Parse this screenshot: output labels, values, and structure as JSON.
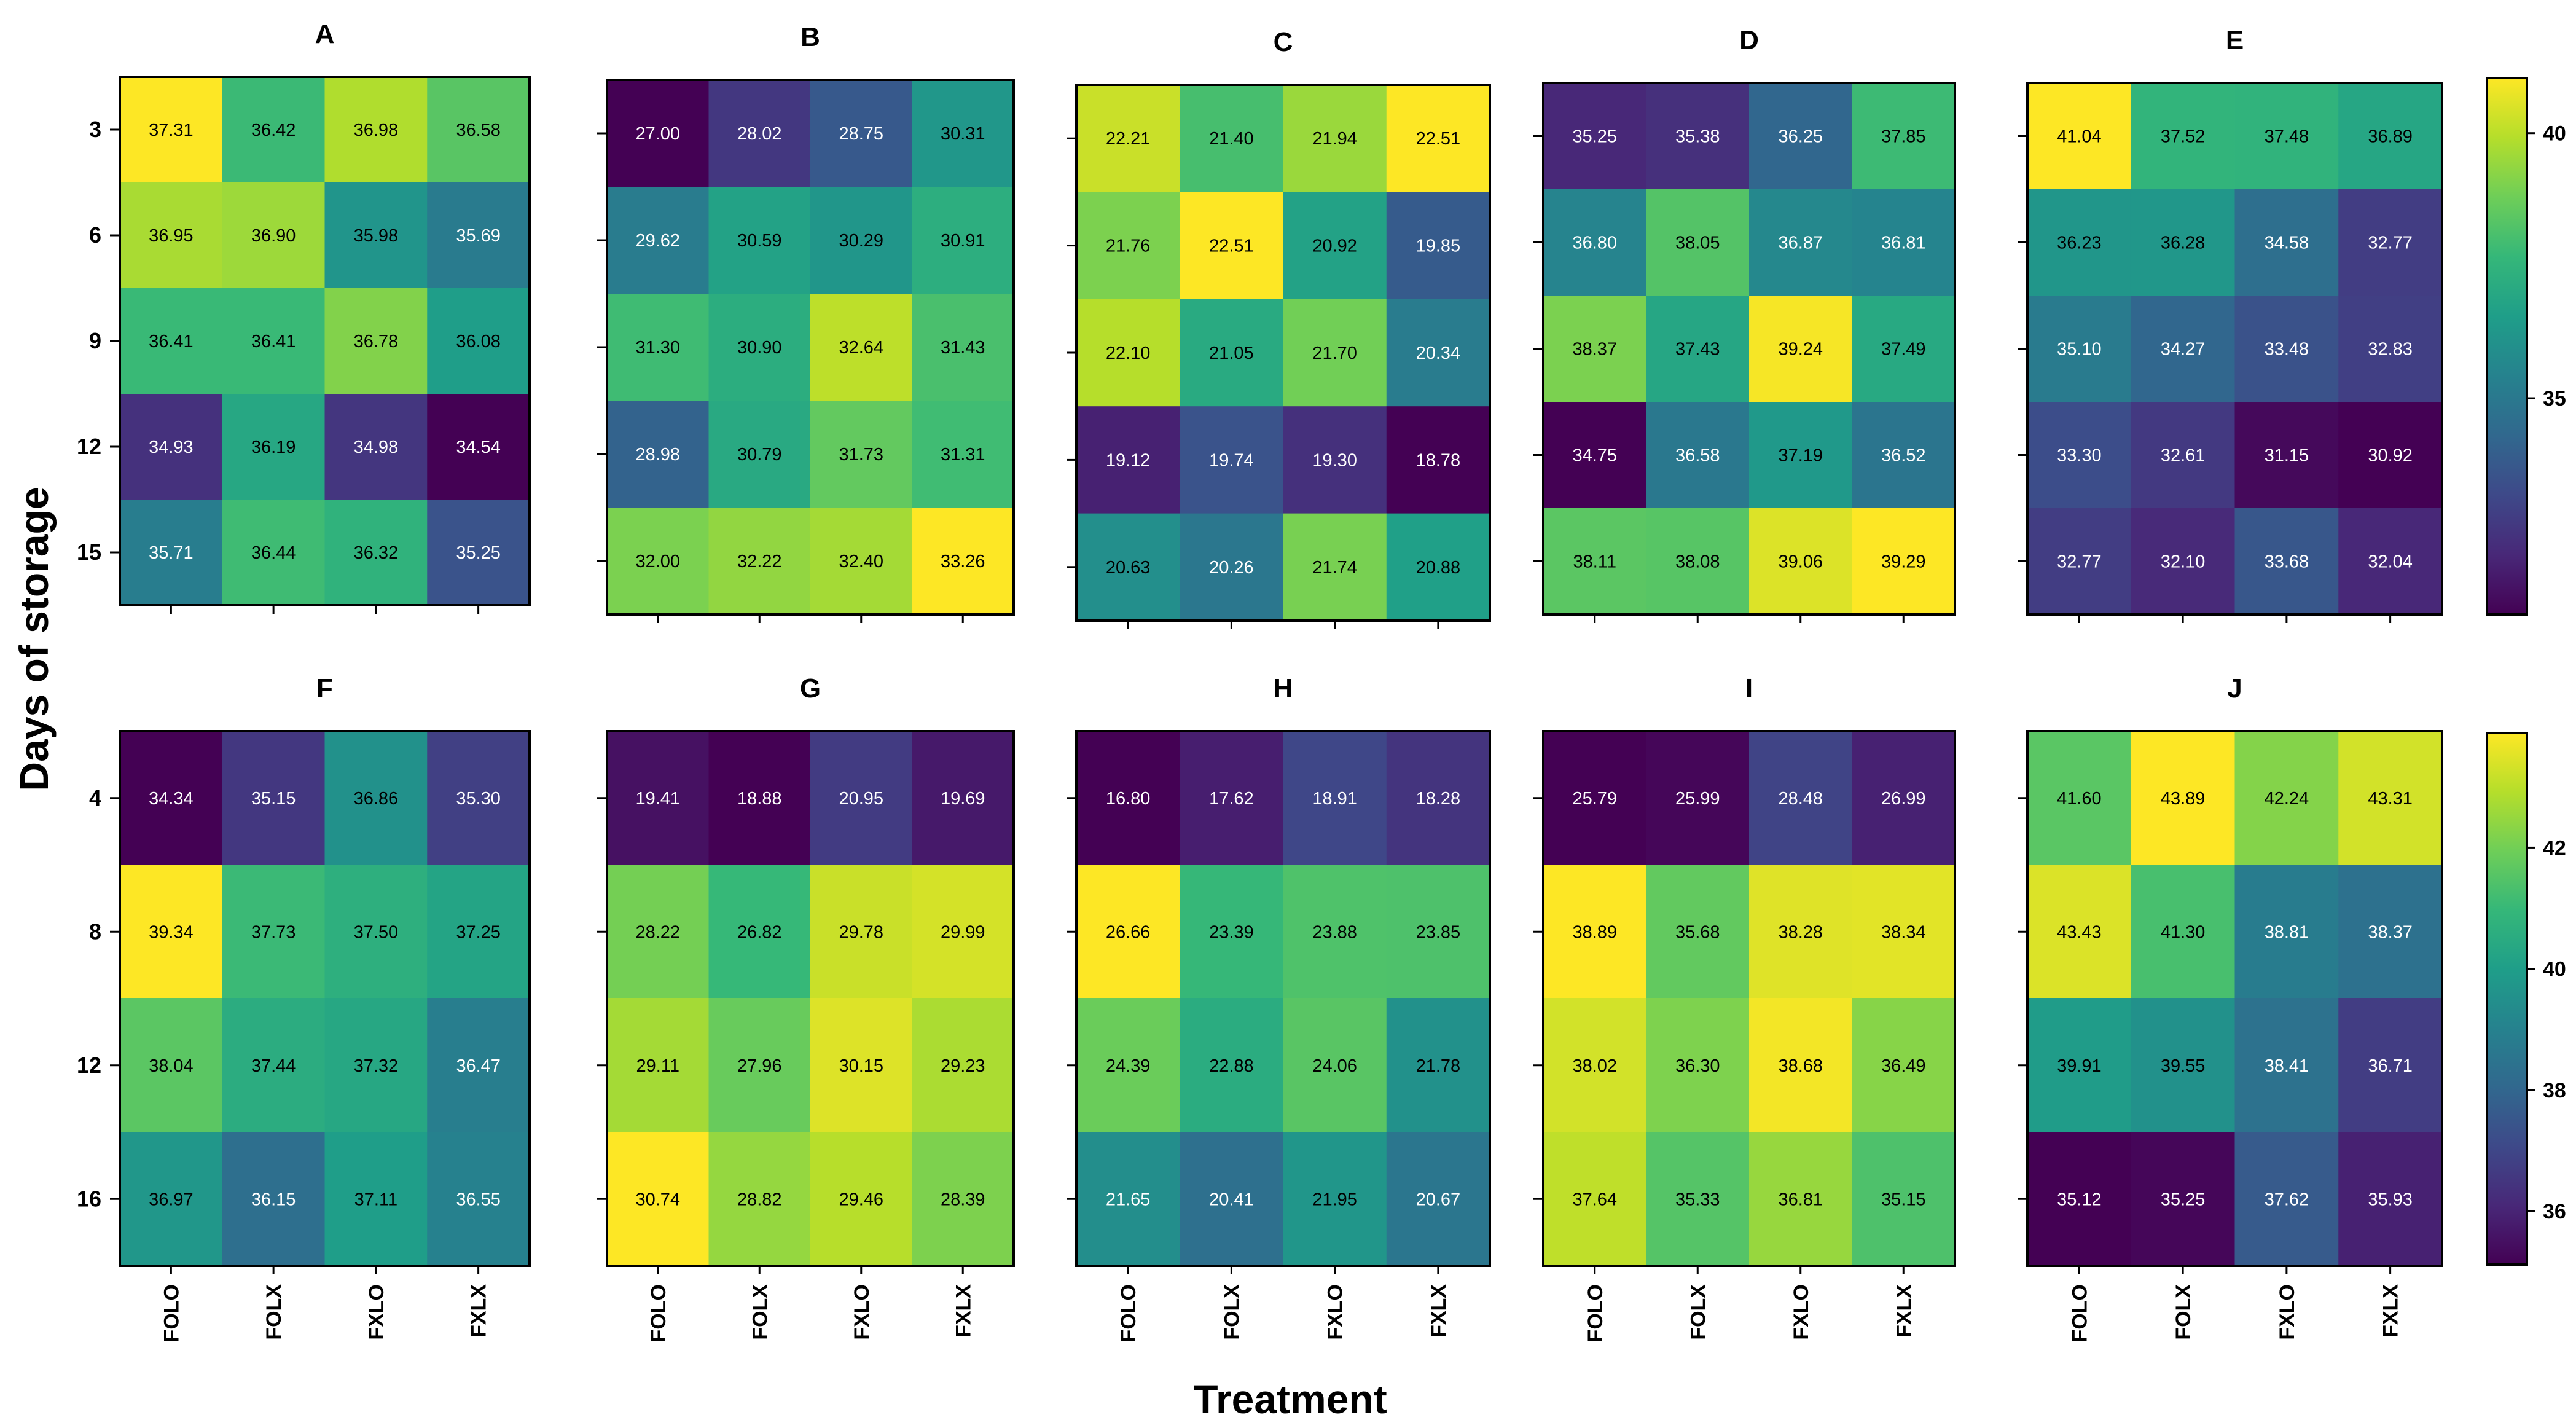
{
  "figure": {
    "ylabel": "Days of storage",
    "xlabel": "Treatment"
  },
  "chart_data": [
    {
      "type": "heatmap",
      "title": "A",
      "x": [
        "FOLO",
        "FOLX",
        "FXLO",
        "FXLX"
      ],
      "y": [
        "3",
        "6",
        "9",
        "12",
        "15"
      ],
      "values": [
        [
          37.31,
          36.42,
          36.98,
          36.58
        ],
        [
          36.95,
          36.9,
          35.98,
          35.69
        ],
        [
          36.41,
          36.41,
          36.78,
          36.08
        ],
        [
          34.93,
          36.19,
          34.98,
          34.54
        ],
        [
          35.71,
          36.44,
          36.32,
          35.25
        ]
      ]
    },
    {
      "type": "heatmap",
      "title": "B",
      "x": [
        "FOLO",
        "FOLX",
        "FXLO",
        "FXLX"
      ],
      "y": [
        "3",
        "6",
        "9",
        "12",
        "15"
      ],
      "values": [
        [
          27.0,
          28.02,
          28.75,
          30.31
        ],
        [
          29.62,
          30.59,
          30.29,
          30.91
        ],
        [
          31.3,
          30.9,
          32.64,
          31.43
        ],
        [
          28.98,
          30.79,
          31.73,
          31.31
        ],
        [
          32.0,
          32.22,
          32.4,
          33.26
        ]
      ]
    },
    {
      "type": "heatmap",
      "title": "C",
      "x": [
        "FOLO",
        "FOLX",
        "FXLO",
        "FXLX"
      ],
      "y": [
        "3",
        "6",
        "9",
        "12",
        "15"
      ],
      "values": [
        [
          22.21,
          21.4,
          21.94,
          22.51
        ],
        [
          21.76,
          22.51,
          20.92,
          19.85
        ],
        [
          22.1,
          21.05,
          21.7,
          20.34
        ],
        [
          19.12,
          19.74,
          19.3,
          18.78
        ],
        [
          20.63,
          20.26,
          21.74,
          20.88
        ]
      ]
    },
    {
      "type": "heatmap",
      "title": "D",
      "x": [
        "FOLO",
        "FOLX",
        "FXLO",
        "FXLX"
      ],
      "y": [
        "3",
        "6",
        "9",
        "12",
        "15"
      ],
      "values": [
        [
          35.25,
          35.38,
          36.25,
          37.85
        ],
        [
          36.8,
          38.05,
          36.87,
          36.81
        ],
        [
          38.37,
          37.43,
          39.24,
          37.49
        ],
        [
          34.75,
          36.58,
          37.19,
          36.52
        ],
        [
          38.11,
          38.08,
          39.06,
          39.29
        ]
      ]
    },
    {
      "type": "heatmap",
      "title": "E",
      "x": [
        "FOLO",
        "FOLX",
        "FXLO",
        "FXLX"
      ],
      "y": [
        "3",
        "6",
        "9",
        "12",
        "15"
      ],
      "values": [
        [
          41.04,
          37.52,
          37.48,
          36.89
        ],
        [
          36.23,
          36.28,
          34.58,
          32.77
        ],
        [
          35.1,
          34.27,
          33.48,
          32.83
        ],
        [
          33.3,
          32.61,
          31.15,
          30.92
        ],
        [
          32.77,
          32.1,
          33.68,
          32.04
        ]
      ],
      "colorbar": {
        "ticks": [
          "40",
          "35"
        ]
      }
    },
    {
      "type": "heatmap",
      "title": "F",
      "x": [
        "FOLO",
        "FOLX",
        "FXLO",
        "FXLX"
      ],
      "y": [
        "4",
        "8",
        "12",
        "16"
      ],
      "values": [
        [
          34.34,
          35.15,
          36.86,
          35.3
        ],
        [
          39.34,
          37.73,
          37.5,
          37.25
        ],
        [
          38.04,
          37.44,
          37.32,
          36.47
        ],
        [
          36.97,
          36.15,
          37.11,
          36.55
        ]
      ]
    },
    {
      "type": "heatmap",
      "title": "G",
      "x": [
        "FOLO",
        "FOLX",
        "FXLO",
        "FXLX"
      ],
      "y": [
        "4",
        "8",
        "12",
        "16"
      ],
      "values": [
        [
          19.41,
          18.88,
          20.95,
          19.69
        ],
        [
          28.22,
          26.82,
          29.78,
          29.99
        ],
        [
          29.11,
          27.96,
          30.15,
          29.23
        ],
        [
          30.74,
          28.82,
          29.46,
          28.39
        ]
      ]
    },
    {
      "type": "heatmap",
      "title": "H",
      "x": [
        "FOLO",
        "FOLX",
        "FXLO",
        "FXLX"
      ],
      "y": [
        "4",
        "8",
        "12",
        "16"
      ],
      "values": [
        [
          16.8,
          17.62,
          18.91,
          18.28
        ],
        [
          26.66,
          23.39,
          23.88,
          23.85
        ],
        [
          24.39,
          22.88,
          24.06,
          21.78
        ],
        [
          21.65,
          20.41,
          21.95,
          20.67
        ]
      ]
    },
    {
      "type": "heatmap",
      "title": "I",
      "x": [
        "FOLO",
        "FOLX",
        "FXLO",
        "FXLX"
      ],
      "y": [
        "4",
        "8",
        "12",
        "16"
      ],
      "values": [
        [
          25.79,
          25.99,
          28.48,
          26.99
        ],
        [
          38.89,
          35.68,
          38.28,
          38.34
        ],
        [
          38.02,
          36.3,
          38.68,
          36.49
        ],
        [
          37.64,
          35.33,
          36.81,
          35.15
        ]
      ]
    },
    {
      "type": "heatmap",
      "title": "J",
      "x": [
        "FOLO",
        "FOLX",
        "FXLO",
        "FXLX"
      ],
      "y": [
        "4",
        "8",
        "12",
        "16"
      ],
      "values": [
        [
          41.6,
          43.89,
          42.24,
          43.31
        ],
        [
          43.43,
          41.3,
          38.81,
          38.37
        ],
        [
          39.91,
          39.55,
          38.41,
          36.71
        ],
        [
          35.12,
          35.25,
          37.62,
          35.93
        ]
      ],
      "colorbar": {
        "ticks": [
          "42",
          "40",
          "38",
          "36"
        ]
      }
    }
  ]
}
